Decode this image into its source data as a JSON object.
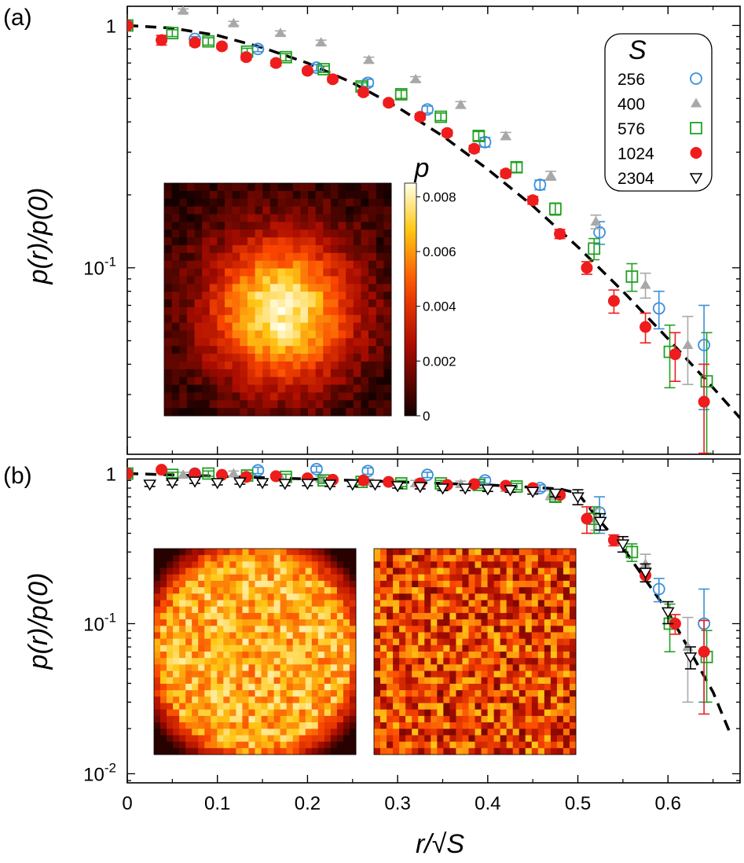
{
  "chart_data": [
    {
      "panel": "(a)",
      "type": "scatter",
      "yscale": "log",
      "xlim": [
        0,
        0.68
      ],
      "ylim": [
        0.017,
        1.2
      ],
      "xticks": [
        0,
        0.1,
        0.2,
        0.3,
        0.4,
        0.5,
        0.6
      ],
      "yticks": [
        {
          "v": 1,
          "label": "1"
        },
        {
          "v": 0.1,
          "label": "10^-1"
        }
      ],
      "ylabel": "p(r)/p(0)",
      "legend": {
        "title": "S",
        "placement": "top-right",
        "entries": [
          "256",
          "400",
          "576",
          "1024",
          "2304"
        ]
      },
      "series": [
        {
          "name": "256",
          "marker": "circle-open",
          "color": "#3b8fd9",
          "x": [
            0,
            0.075,
            0.145,
            0.21,
            0.267,
            0.333,
            0.397,
            0.458,
            0.524,
            0.59,
            0.64
          ],
          "y": [
            1.0,
            0.88,
            0.8,
            0.67,
            0.58,
            0.45,
            0.33,
            0.22,
            0.14,
            0.068,
            0.048
          ],
          "err": [
            0,
            0.02,
            0.02,
            0.02,
            0.02,
            0.015,
            0.015,
            0.01,
            0.015,
            0.012,
            0.022
          ]
        },
        {
          "name": "400",
          "marker": "triangle-filled",
          "color": "#a8a8a8",
          "x": [
            0,
            0.062,
            0.118,
            0.17,
            0.215,
            0.268,
            0.32,
            0.37,
            0.42,
            0.47,
            0.52,
            0.575,
            0.622
          ],
          "y": [
            1.0,
            1.15,
            1.02,
            0.93,
            0.85,
            0.72,
            0.6,
            0.47,
            0.35,
            0.24,
            0.155,
            0.085,
            0.048
          ],
          "err": [
            0,
            0.02,
            0.02,
            0.02,
            0.02,
            0.02,
            0.015,
            0.015,
            0.012,
            0.01,
            0.01,
            0.01,
            0.015
          ]
        },
        {
          "name": "576",
          "marker": "square-open",
          "color": "#23a023",
          "x": [
            0,
            0.05,
            0.09,
            0.133,
            0.176,
            0.218,
            0.26,
            0.304,
            0.348,
            0.39,
            0.432,
            0.475,
            0.518,
            0.56,
            0.602,
            0.643
          ],
          "y": [
            1.0,
            0.93,
            0.86,
            0.78,
            0.74,
            0.66,
            0.56,
            0.52,
            0.42,
            0.35,
            0.26,
            0.175,
            0.12,
            0.092,
            0.045,
            0.034
          ],
          "err": [
            0,
            0.03,
            0.03,
            0.025,
            0.025,
            0.02,
            0.02,
            0.02,
            0.015,
            0.015,
            0.012,
            0.01,
            0.012,
            0.012,
            0.013,
            0.02
          ]
        },
        {
          "name": "1024",
          "marker": "circle-filled",
          "color": "#ee1c1c",
          "x": [
            0,
            0.038,
            0.075,
            0.105,
            0.132,
            0.165,
            0.2,
            0.228,
            0.262,
            0.29,
            0.325,
            0.355,
            0.385,
            0.42,
            0.45,
            0.48,
            0.51,
            0.54,
            0.575,
            0.608,
            0.64
          ],
          "y": [
            1.0,
            0.87,
            0.85,
            0.82,
            0.74,
            0.7,
            0.65,
            0.6,
            0.53,
            0.48,
            0.42,
            0.36,
            0.31,
            0.245,
            0.19,
            0.138,
            0.1,
            0.073,
            0.057,
            0.044,
            0.028
          ],
          "err": [
            0,
            0.04,
            0.025,
            0.02,
            0.02,
            0.02,
            0.015,
            0.015,
            0.015,
            0.012,
            0.012,
            0.01,
            0.01,
            0.008,
            0.007,
            0.006,
            0.006,
            0.008,
            0.008,
            0.01,
            0.012
          ]
        }
      ],
      "fit": {
        "style": "dashed",
        "color": "#000000",
        "x": [
          0,
          0.05,
          0.1,
          0.15,
          0.2,
          0.25,
          0.3,
          0.35,
          0.4,
          0.45,
          0.5,
          0.55,
          0.6,
          0.65,
          0.68
        ],
        "y": [
          1.0,
          0.975,
          0.91,
          0.81,
          0.7,
          0.58,
          0.46,
          0.35,
          0.255,
          0.18,
          0.122,
          0.08,
          0.051,
          0.032,
          0.024
        ]
      },
      "inset": {
        "type": "heatmap",
        "colorbar_label": "p",
        "colorbar_range": [
          0,
          0.0085
        ],
        "colorbar_ticks": [
          "0",
          "0.002",
          "0.004",
          "0.006",
          "0.008"
        ]
      }
    },
    {
      "panel": "(b)",
      "type": "scatter",
      "yscale": "log",
      "xlim": [
        0,
        0.68
      ],
      "ylim": [
        0.0087,
        1.25
      ],
      "xticks": [
        0,
        0.1,
        0.2,
        0.3,
        0.4,
        0.5,
        0.6
      ],
      "yticks": [
        {
          "v": 1,
          "label": "1"
        },
        {
          "v": 0.1,
          "label": "10^-1"
        },
        {
          "v": 0.01,
          "label": "10^-2"
        }
      ],
      "xlabel": "r/√S",
      "ylabel": "p(r)/p(0)",
      "series": [
        {
          "name": "256",
          "marker": "circle-open",
          "color": "#3b8fd9",
          "x": [
            0,
            0.075,
            0.145,
            0.21,
            0.267,
            0.333,
            0.397,
            0.458,
            0.524,
            0.59,
            0.64
          ],
          "y": [
            1.0,
            1.0,
            1.05,
            1.07,
            1.04,
            0.98,
            0.9,
            0.8,
            0.55,
            0.17,
            0.1
          ],
          "err": [
            0,
            0.04,
            0.05,
            0.05,
            0.05,
            0.04,
            0.04,
            0.04,
            0.15,
            0.03,
            0.07
          ]
        },
        {
          "name": "400",
          "marker": "triangle-filled",
          "color": "#a8a8a8",
          "x": [
            0,
            0.062,
            0.118,
            0.17,
            0.215,
            0.268,
            0.32,
            0.37,
            0.42,
            0.47,
            0.52,
            0.575,
            0.622
          ],
          "y": [
            1.0,
            0.98,
            1.0,
            0.95,
            0.92,
            0.88,
            0.86,
            0.85,
            0.8,
            0.72,
            0.5,
            0.25,
            0.07
          ],
          "err": [
            0,
            0.04,
            0.04,
            0.04,
            0.04,
            0.04,
            0.04,
            0.04,
            0.04,
            0.05,
            0.08,
            0.04,
            0.04
          ]
        },
        {
          "name": "576",
          "marker": "square-open",
          "color": "#23a023",
          "x": [
            0,
            0.05,
            0.09,
            0.133,
            0.176,
            0.218,
            0.26,
            0.304,
            0.348,
            0.39,
            0.432,
            0.475,
            0.518,
            0.56,
            0.602,
            0.643
          ],
          "y": [
            1.0,
            0.98,
            1.0,
            0.97,
            0.95,
            0.9,
            0.88,
            0.86,
            0.86,
            0.84,
            0.82,
            0.7,
            0.5,
            0.3,
            0.1,
            0.06
          ],
          "err": [
            0,
            0.04,
            0.04,
            0.04,
            0.04,
            0.04,
            0.04,
            0.04,
            0.04,
            0.04,
            0.04,
            0.05,
            0.1,
            0.04,
            0.035,
            0.03
          ]
        },
        {
          "name": "1024",
          "marker": "circle-filled",
          "color": "#ee1c1c",
          "x": [
            0,
            0.038,
            0.075,
            0.105,
            0.132,
            0.165,
            0.2,
            0.228,
            0.262,
            0.29,
            0.325,
            0.355,
            0.385,
            0.42,
            0.45,
            0.48,
            0.51,
            0.54,
            0.575,
            0.608,
            0.64
          ],
          "y": [
            1.0,
            1.06,
            1.0,
            0.98,
            0.95,
            0.96,
            0.93,
            0.91,
            0.9,
            0.88,
            0.86,
            0.84,
            0.85,
            0.83,
            0.8,
            0.72,
            0.5,
            0.36,
            0.21,
            0.1,
            0.065
          ],
          "err": [
            0,
            0.02,
            0.02,
            0.02,
            0.02,
            0.02,
            0.02,
            0.02,
            0.02,
            0.02,
            0.02,
            0.02,
            0.02,
            0.02,
            0.02,
            0.03,
            0.1,
            0.03,
            0.02,
            0.015,
            0.04
          ]
        },
        {
          "name": "2304",
          "marker": "triangle-down-open",
          "color": "#000000",
          "x": [
            0.025,
            0.05,
            0.075,
            0.1,
            0.125,
            0.15,
            0.175,
            0.2,
            0.225,
            0.25,
            0.275,
            0.3,
            0.325,
            0.35,
            0.375,
            0.4,
            0.425,
            0.45,
            0.475,
            0.5,
            0.525,
            0.55,
            0.575,
            0.6,
            0.625
          ],
          "y": [
            0.85,
            0.87,
            0.89,
            0.87,
            0.88,
            0.87,
            0.86,
            0.86,
            0.85,
            0.85,
            0.85,
            0.83,
            0.82,
            0.8,
            0.8,
            0.79,
            0.78,
            0.76,
            0.74,
            0.7,
            0.48,
            0.34,
            0.22,
            0.12,
            0.06
          ],
          "err": [
            0.03,
            0.03,
            0.03,
            0.03,
            0.03,
            0.03,
            0.03,
            0.03,
            0.03,
            0.03,
            0.03,
            0.03,
            0.03,
            0.03,
            0.03,
            0.03,
            0.03,
            0.03,
            0.04,
            0.08,
            0.06,
            0.04,
            0.03,
            0.02,
            0.01
          ]
        }
      ],
      "fit": {
        "style": "dashed",
        "color": "#000000",
        "x": [
          0,
          0.1,
          0.2,
          0.3,
          0.4,
          0.45,
          0.48,
          0.5,
          0.52,
          0.55,
          0.6,
          0.65,
          0.67
        ],
        "y": [
          1.0,
          0.96,
          0.92,
          0.88,
          0.84,
          0.81,
          0.79,
          0.74,
          0.52,
          0.32,
          0.12,
          0.035,
          0.018
        ]
      },
      "insets": [
        {
          "type": "heatmap",
          "pattern": "disk"
        },
        {
          "type": "heatmap",
          "pattern": "uniform"
        }
      ]
    }
  ]
}
